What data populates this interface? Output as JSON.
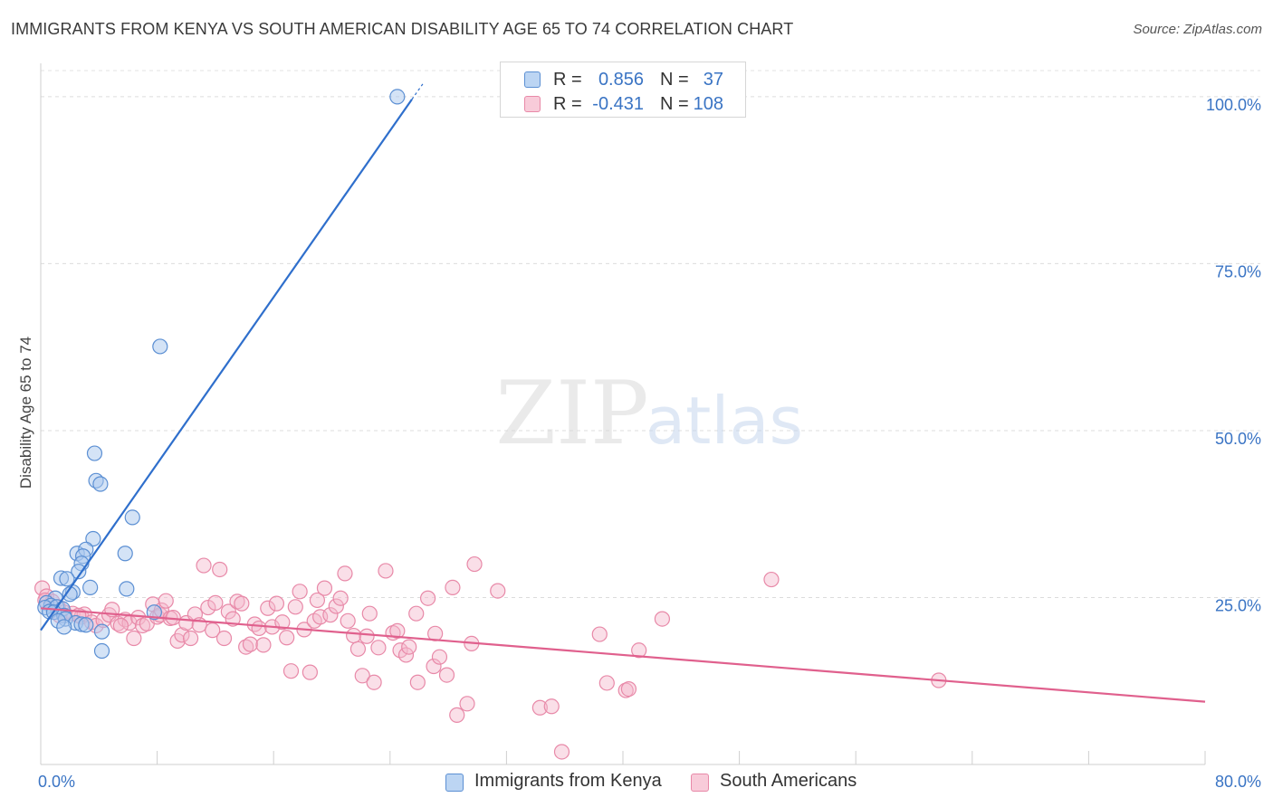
{
  "title": "IMMIGRANTS FROM KENYA VS SOUTH AMERICAN DISABILITY AGE 65 TO 74 CORRELATION CHART",
  "source": "Source: ZipAtlas.com",
  "watermark": {
    "zip": "ZIP",
    "atlas": "atlas"
  },
  "colors": {
    "blue_fill": "#a9c8ee",
    "blue_stroke": "#5b8fd3",
    "blue_line": "#2f6fcc",
    "pink_fill": "#f5b8cb",
    "pink_stroke": "#e889a8",
    "pink_line": "#e0608d",
    "axis_label": "#3a74c4"
  },
  "legend": {
    "items": [
      {
        "r_label": "R =",
        "r_value": "0.856",
        "n_label": "N =",
        "n_value": "37"
      },
      {
        "r_label": "R =",
        "r_value": "-0.431",
        "n_label": "N =",
        "n_value": "108"
      }
    ]
  },
  "bottom_legend": {
    "series1": "Immigrants from Kenya",
    "series2": "South Americans"
  },
  "chart_data": {
    "type": "scatter",
    "xlabel": "",
    "ylabel": "Disability Age 65 to 74",
    "xlim": [
      0,
      80
    ],
    "ylim": [
      0,
      105
    ],
    "x_tick_labels": [
      "0.0%",
      "80.0%"
    ],
    "y_ticks": [
      25,
      50,
      75,
      100
    ],
    "y_tick_labels": [
      "25.0%",
      "50.0%",
      "75.0%",
      "100.0%"
    ],
    "grid": true,
    "legend_position": "top-center",
    "series": [
      {
        "name": "Immigrants from Kenya",
        "points": [
          [
            24.5,
            100
          ],
          [
            8.2,
            62.6
          ],
          [
            3.7,
            46.6
          ],
          [
            3.8,
            42.5
          ],
          [
            4.1,
            42.0
          ],
          [
            6.3,
            37.0
          ],
          [
            3.6,
            33.8
          ],
          [
            2.5,
            31.6
          ],
          [
            3.1,
            32.2
          ],
          [
            5.8,
            31.6
          ],
          [
            2.9,
            31.2
          ],
          [
            2.8,
            30.1
          ],
          [
            2.6,
            28.9
          ],
          [
            1.4,
            27.9
          ],
          [
            1.8,
            27.8
          ],
          [
            3.4,
            26.5
          ],
          [
            5.9,
            26.3
          ],
          [
            2.2,
            25.8
          ],
          [
            2.0,
            25.5
          ],
          [
            1.0,
            24.9
          ],
          [
            0.4,
            24.2
          ],
          [
            0.7,
            23.8
          ],
          [
            0.3,
            23.5
          ],
          [
            1.1,
            23.6
          ],
          [
            1.5,
            23.3
          ],
          [
            0.6,
            22.9
          ],
          [
            0.9,
            22.8
          ],
          [
            1.6,
            22.3
          ],
          [
            7.8,
            22.8
          ],
          [
            1.7,
            21.8
          ],
          [
            1.2,
            21.5
          ],
          [
            2.4,
            21.2
          ],
          [
            2.8,
            21.0
          ],
          [
            3.1,
            20.9
          ],
          [
            1.6,
            20.6
          ],
          [
            4.2,
            19.9
          ],
          [
            4.2,
            17.0
          ]
        ],
        "trend": [
          [
            0,
            20.1
          ],
          [
            25.5,
            99.6
          ]
        ]
      },
      {
        "name": "South Americans",
        "points": [
          [
            0.1,
            26.4
          ],
          [
            0.4,
            25.2
          ],
          [
            0.8,
            24.4
          ],
          [
            1.2,
            23.6
          ],
          [
            1.6,
            22.8
          ],
          [
            2.2,
            22.6
          ],
          [
            2.8,
            22.1
          ],
          [
            3.0,
            22.5
          ],
          [
            3.5,
            21.3
          ],
          [
            3.8,
            20.8
          ],
          [
            4.3,
            21.6
          ],
          [
            4.7,
            22.4
          ],
          [
            4.9,
            23.2
          ],
          [
            5.3,
            21.1
          ],
          [
            5.8,
            21.7
          ],
          [
            6.1,
            21.2
          ],
          [
            6.4,
            18.9
          ],
          [
            6.7,
            22.0
          ],
          [
            7.0,
            20.8
          ],
          [
            7.3,
            21.1
          ],
          [
            7.7,
            24.0
          ],
          [
            8.0,
            22.1
          ],
          [
            8.2,
            22.4
          ],
          [
            8.3,
            23.1
          ],
          [
            8.6,
            24.5
          ],
          [
            8.9,
            21.9
          ],
          [
            9.1,
            22.0
          ],
          [
            9.4,
            18.5
          ],
          [
            9.7,
            19.4
          ],
          [
            10.0,
            21.2
          ],
          [
            10.3,
            18.9
          ],
          [
            10.6,
            22.5
          ],
          [
            10.9,
            20.9
          ],
          [
            11.2,
            29.8
          ],
          [
            11.5,
            23.5
          ],
          [
            11.8,
            20.1
          ],
          [
            12.0,
            24.2
          ],
          [
            12.3,
            29.2
          ],
          [
            12.6,
            18.9
          ],
          [
            12.9,
            22.9
          ],
          [
            13.2,
            21.8
          ],
          [
            13.5,
            24.4
          ],
          [
            13.8,
            24.1
          ],
          [
            14.1,
            17.6
          ],
          [
            14.4,
            18.0
          ],
          [
            14.7,
            21.0
          ],
          [
            15.0,
            20.4
          ],
          [
            15.3,
            17.9
          ],
          [
            15.6,
            23.4
          ],
          [
            15.9,
            20.6
          ],
          [
            16.2,
            24.1
          ],
          [
            16.6,
            21.3
          ],
          [
            16.9,
            19.0
          ],
          [
            17.2,
            14.0
          ],
          [
            17.5,
            23.6
          ],
          [
            17.8,
            25.9
          ],
          [
            18.1,
            20.2
          ],
          [
            18.5,
            13.8
          ],
          [
            18.8,
            21.5
          ],
          [
            19.0,
            24.6
          ],
          [
            19.2,
            22.1
          ],
          [
            19.5,
            26.4
          ],
          [
            19.9,
            22.4
          ],
          [
            20.3,
            23.7
          ],
          [
            20.6,
            24.9
          ],
          [
            20.9,
            28.6
          ],
          [
            21.1,
            21.5
          ],
          [
            21.5,
            19.3
          ],
          [
            21.8,
            17.3
          ],
          [
            22.1,
            13.3
          ],
          [
            22.4,
            19.2
          ],
          [
            22.6,
            22.6
          ],
          [
            22.9,
            12.3
          ],
          [
            23.2,
            17.5
          ],
          [
            23.7,
            29.0
          ],
          [
            24.2,
            19.7
          ],
          [
            24.5,
            20.0
          ],
          [
            24.7,
            17.1
          ],
          [
            25.1,
            16.4
          ],
          [
            25.3,
            17.6
          ],
          [
            25.8,
            22.6
          ],
          [
            25.9,
            12.3
          ],
          [
            26.6,
            24.9
          ],
          [
            27.0,
            14.7
          ],
          [
            27.1,
            19.6
          ],
          [
            27.4,
            16.1
          ],
          [
            27.9,
            13.4
          ],
          [
            28.3,
            26.5
          ],
          [
            28.6,
            7.4
          ],
          [
            29.3,
            9.1
          ],
          [
            29.6,
            18.1
          ],
          [
            31.4,
            26.0
          ],
          [
            29.8,
            30.0
          ],
          [
            34.3,
            8.5
          ],
          [
            35.1,
            8.7
          ],
          [
            35.8,
            1.9
          ],
          [
            38.4,
            19.5
          ],
          [
            38.9,
            12.2
          ],
          [
            40.2,
            11.1
          ],
          [
            40.4,
            11.3
          ],
          [
            41.1,
            17.1
          ],
          [
            42.7,
            21.8
          ],
          [
            50.2,
            27.7
          ],
          [
            61.7,
            12.6
          ],
          [
            0.3,
            24.6
          ],
          [
            1.3,
            22.3
          ],
          [
            2.6,
            22.3
          ],
          [
            5.5,
            20.8
          ]
        ],
        "trend": [
          [
            0,
            23.4
          ],
          [
            80,
            9.4
          ]
        ]
      }
    ]
  }
}
